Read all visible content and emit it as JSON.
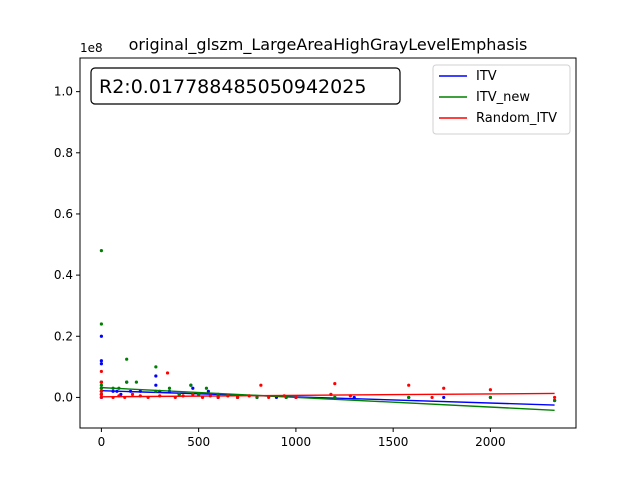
{
  "chart_data": {
    "type": "scatter",
    "title": "original_glszm_LargeAreaHighGrayLevelEmphasis",
    "xlabel": "",
    "ylabel": "",
    "y_multiplier_label": "1e8",
    "xlim": [
      -110,
      2440
    ],
    "ylim": [
      -0.1,
      1.11
    ],
    "x_ticks": [
      0,
      500,
      1000,
      1500,
      2000
    ],
    "y_ticks": [
      0.0,
      0.2,
      0.4,
      0.6,
      0.8,
      1.0
    ],
    "x_tick_labels": [
      "0",
      "500",
      "1000",
      "1500",
      "2000"
    ],
    "y_tick_labels": [
      "0.0",
      "0.2",
      "0.4",
      "0.6",
      "0.8",
      "1.0"
    ],
    "annotation": "R2:0.017788485050942025",
    "legend_position": "top-right",
    "series": [
      {
        "name": "ITV",
        "color": "#0000ff",
        "points": [
          [
            0,
            0.99
          ],
          [
            0,
            0.2
          ],
          [
            0,
            0.12
          ],
          [
            0,
            0.11
          ],
          [
            0,
            0.05
          ],
          [
            0,
            0.03
          ],
          [
            0,
            0.02
          ],
          [
            0,
            0.01
          ],
          [
            0,
            0.0
          ],
          [
            60,
            0.02
          ],
          [
            80,
            0.02
          ],
          [
            100,
            0.01
          ],
          [
            130,
            0.05
          ],
          [
            150,
            0.02
          ],
          [
            200,
            0.02
          ],
          [
            280,
            0.07
          ],
          [
            280,
            0.04
          ],
          [
            300,
            0.02
          ],
          [
            350,
            0.02
          ],
          [
            400,
            0.01
          ],
          [
            460,
            0.04
          ],
          [
            470,
            0.03
          ],
          [
            500,
            0.01
          ],
          [
            550,
            0.02
          ],
          [
            600,
            0.0
          ],
          [
            700,
            0.0
          ],
          [
            800,
            0.0
          ],
          [
            900,
            0.0
          ],
          [
            950,
            0.0
          ],
          [
            1000,
            0.0
          ],
          [
            1200,
            0.0
          ],
          [
            1300,
            0.0
          ],
          [
            1580,
            0.0
          ],
          [
            1760,
            0.0
          ],
          [
            2000,
            0.0
          ],
          [
            2330,
            -0.01
          ]
        ],
        "fit_line": [
          [
            0,
            0.022
          ],
          [
            2330,
            -0.025
          ]
        ]
      },
      {
        "name": "ITV_new",
        "color": "#008000",
        "points": [
          [
            0,
            0.48
          ],
          [
            0,
            0.24
          ],
          [
            0,
            0.05
          ],
          [
            0,
            0.04
          ],
          [
            0,
            0.03
          ],
          [
            0,
            0.02
          ],
          [
            0,
            0.01
          ],
          [
            60,
            0.03
          ],
          [
            90,
            0.03
          ],
          [
            130,
            0.125
          ],
          [
            130,
            0.05
          ],
          [
            180,
            0.05
          ],
          [
            280,
            0.1
          ],
          [
            280,
            0.02
          ],
          [
            350,
            0.03
          ],
          [
            400,
            0.01
          ],
          [
            460,
            0.04
          ],
          [
            500,
            0.01
          ],
          [
            540,
            0.03
          ],
          [
            600,
            0.01
          ],
          [
            700,
            0.0
          ],
          [
            800,
            0.0
          ],
          [
            950,
            0.0
          ],
          [
            1200,
            0.0
          ],
          [
            1580,
            0.0
          ],
          [
            2000,
            0.0
          ],
          [
            2330,
            -0.01
          ]
        ],
        "fit_line": [
          [
            0,
            0.032
          ],
          [
            2330,
            -0.042
          ]
        ]
      },
      {
        "name": "Random_ITV",
        "color": "#ff0000",
        "points": [
          [
            0,
            0.085
          ],
          [
            0,
            0.05
          ],
          [
            0,
            0.02
          ],
          [
            0,
            0.01
          ],
          [
            0,
            0.0
          ],
          [
            60,
            0.0
          ],
          [
            90,
            0.005
          ],
          [
            120,
            0.0
          ],
          [
            160,
            0.01
          ],
          [
            200,
            0.005
          ],
          [
            240,
            0.0
          ],
          [
            300,
            0.005
          ],
          [
            340,
            0.08
          ],
          [
            380,
            0.0
          ],
          [
            420,
            0.005
          ],
          [
            470,
            0.01
          ],
          [
            520,
            0.0
          ],
          [
            560,
            0.005
          ],
          [
            600,
            0.0
          ],
          [
            650,
            0.005
          ],
          [
            700,
            0.0
          ],
          [
            760,
            0.005
          ],
          [
            820,
            0.04
          ],
          [
            860,
            0.0
          ],
          [
            940,
            0.005
          ],
          [
            1000,
            0.0
          ],
          [
            1180,
            0.01
          ],
          [
            1200,
            0.045
          ],
          [
            1280,
            0.005
          ],
          [
            1580,
            0.04
          ],
          [
            1700,
            0.0
          ],
          [
            1760,
            0.03
          ],
          [
            2000,
            0.025
          ],
          [
            2330,
            0.0
          ]
        ],
        "fit_line": [
          [
            0,
            0.002
          ],
          [
            2330,
            0.013
          ]
        ]
      }
    ]
  }
}
